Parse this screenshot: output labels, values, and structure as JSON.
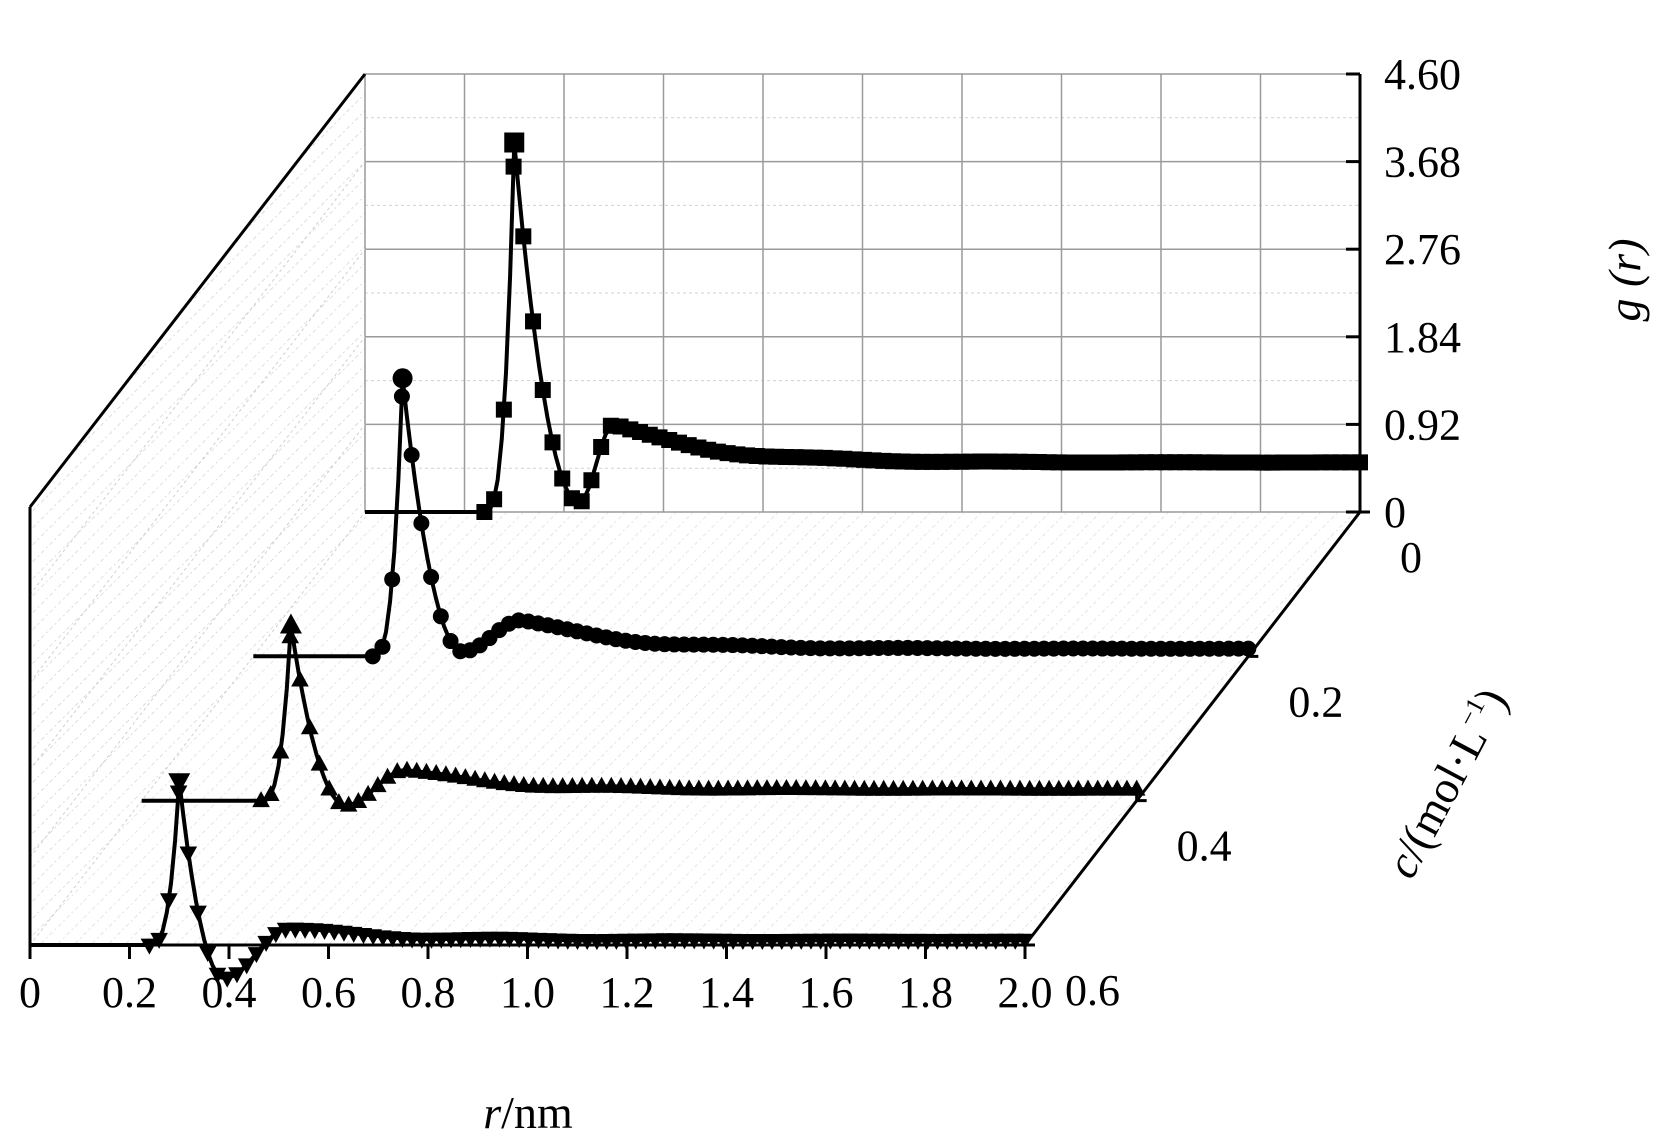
{
  "chart_data": {
    "type": "line",
    "projection": "3d-waterfall",
    "xlabel_var": "r",
    "xlabel_unit": "/nm",
    "ylabel_var": "c",
    "ylabel_unit": "/(mol·L",
    "ylabel_exp": "−1",
    "ylabel_close": ")",
    "zlabel_var": "g",
    "zlabel_arg": " (r)",
    "x_ticks": [
      "0",
      "0.2",
      "0.4",
      "0.6",
      "0.8",
      "1.0",
      "1.2",
      "1.4",
      "1.6",
      "1.8",
      "2.0"
    ],
    "y_ticks": [
      "0",
      "0.2",
      "0.4",
      "0.6"
    ],
    "z_ticks": [
      "0",
      "0.92",
      "1.84",
      "2.76",
      "3.68",
      "4.60"
    ],
    "xlim": [
      0,
      2.0
    ],
    "ylim": [
      0,
      0.6
    ],
    "zlim": [
      0,
      4.6
    ],
    "grid": true,
    "series": [
      {
        "c": 0,
        "marker": "square",
        "peak": {
          "r": 0.3,
          "g": 3.88
        },
        "min": {
          "r": 0.43,
          "g": 0.1
        },
        "peak2": {
          "r": 0.5,
          "g": 0.92
        },
        "plateau": 0.52,
        "x_start": 0.0,
        "x_end": 2.0
      },
      {
        "c": 0.2,
        "marker": "circle",
        "peak": {
          "r": 0.3,
          "g": 2.92
        },
        "min": {
          "r": 0.42,
          "g": 0.05
        },
        "peak2": {
          "r": 0.54,
          "g": 0.38
        },
        "plateau": 0.08,
        "x_start": 0.0,
        "x_end": 2.0
      },
      {
        "c": 0.4,
        "marker": "triangle-up",
        "peak": {
          "r": 0.3,
          "g": 1.84
        },
        "min": {
          "r": 0.41,
          "g": -0.05
        },
        "peak2": {
          "r": 0.53,
          "g": 0.32
        },
        "plateau": 0.12,
        "x_start": 0.0,
        "x_end": 2.0
      },
      {
        "c": 0.6,
        "marker": "triangle-down",
        "peak": {
          "r": 0.3,
          "g": 1.72
        },
        "min": {
          "r": 0.39,
          "g": -0.35
        },
        "peak2": {
          "r": 0.52,
          "g": 0.17
        },
        "plateau": 0.05,
        "x_start": 0.0,
        "x_end": 2.0
      }
    ]
  }
}
